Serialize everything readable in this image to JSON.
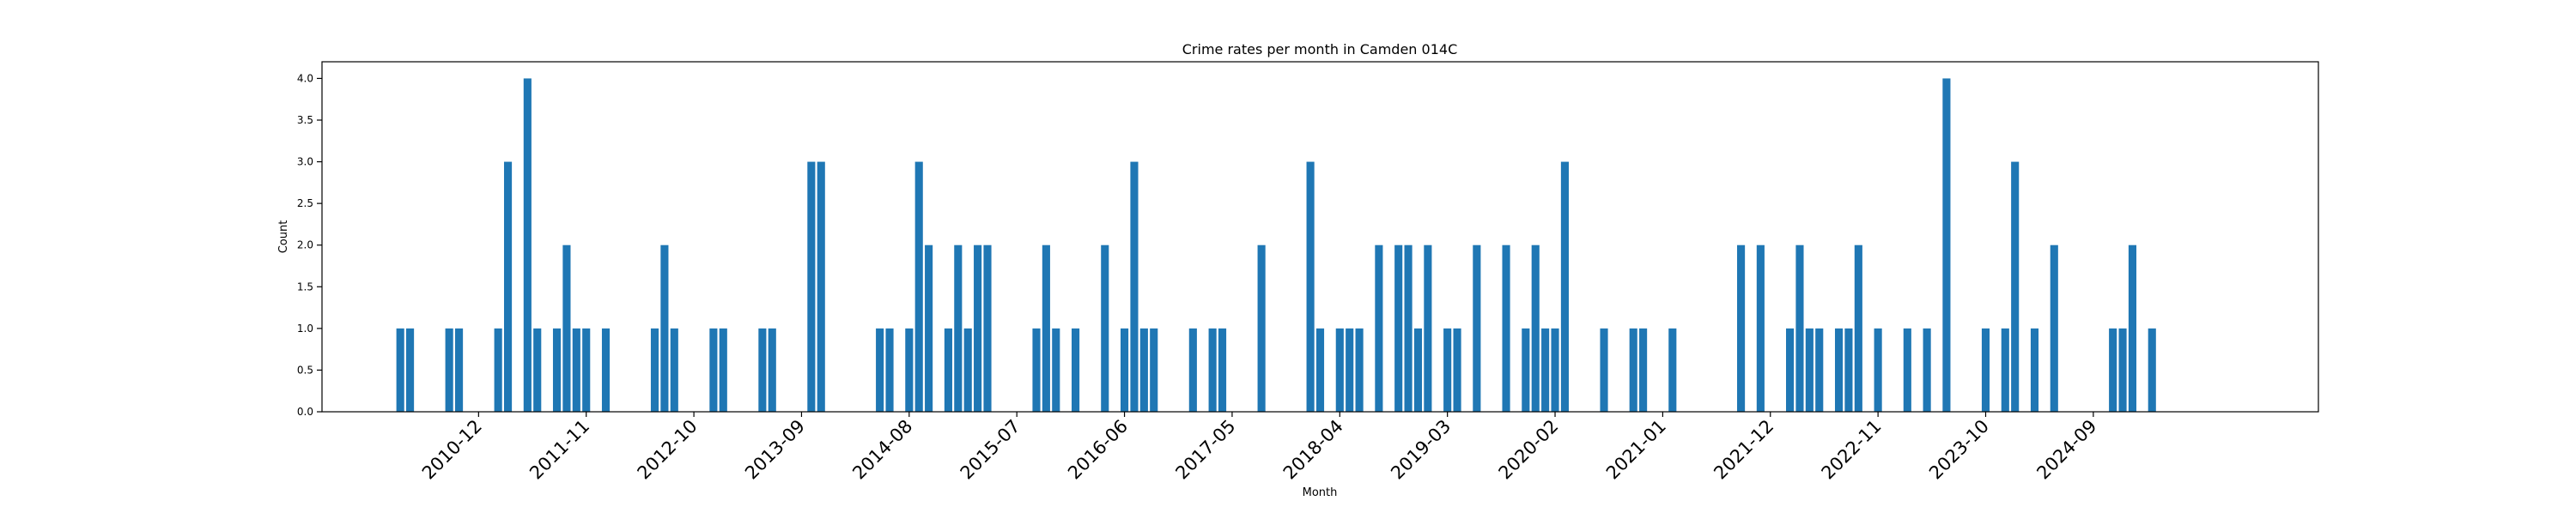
{
  "chart_data": {
    "type": "bar",
    "title": "Crime rates per month in Camden 014C",
    "xlabel": "Month",
    "ylabel": "Count",
    "ylim": [
      0,
      4.2
    ],
    "xlim": [
      "2009-08",
      "2026-08"
    ],
    "yticks": [
      "0.0",
      "0.5",
      "1.0",
      "1.5",
      "2.0",
      "2.5",
      "3.0",
      "3.5",
      "4.0"
    ],
    "xticks": [
      "2010-12",
      "2011-11",
      "2012-10",
      "2013-09",
      "2014-08",
      "2015-07",
      "2016-06",
      "2017-05",
      "2018-04",
      "2019-03",
      "2020-02",
      "2021-01",
      "2021-12",
      "2022-11",
      "2023-10",
      "2024-09"
    ],
    "grid": false,
    "legend": "none",
    "bar_color": "#1f77b4",
    "categories": [
      "2010-04",
      "2010-05",
      "2010-09",
      "2010-10",
      "2011-02",
      "2011-03",
      "2011-05",
      "2011-06",
      "2011-08",
      "2011-09",
      "2011-10",
      "2011-11",
      "2012-01",
      "2012-06",
      "2012-07",
      "2012-08",
      "2012-12",
      "2013-01",
      "2013-05",
      "2013-06",
      "2013-10",
      "2013-11",
      "2014-05",
      "2014-06",
      "2014-08",
      "2014-09",
      "2014-10",
      "2014-12",
      "2015-01",
      "2015-02",
      "2015-03",
      "2015-04",
      "2015-09",
      "2015-10",
      "2015-11",
      "2016-01",
      "2016-04",
      "2016-06",
      "2016-07",
      "2016-08",
      "2016-09",
      "2017-01",
      "2017-03",
      "2017-04",
      "2017-08",
      "2018-01",
      "2018-02",
      "2018-04",
      "2018-05",
      "2018-06",
      "2018-08",
      "2018-10",
      "2018-11",
      "2018-12",
      "2019-01",
      "2019-03",
      "2019-04",
      "2019-06",
      "2019-09",
      "2019-11",
      "2019-12",
      "2020-01",
      "2020-02",
      "2020-03",
      "2020-07",
      "2020-10",
      "2020-11",
      "2021-02",
      "2021-09",
      "2021-11",
      "2022-02",
      "2022-03",
      "2022-04",
      "2022-05",
      "2022-07",
      "2022-08",
      "2022-09",
      "2022-11",
      "2023-02",
      "2023-04",
      "2023-06",
      "2023-10",
      "2023-12",
      "2024-01",
      "2024-03",
      "2024-05",
      "2024-11",
      "2024-12",
      "2025-01",
      "2025-03"
    ],
    "values": [
      1,
      1,
      1,
      1,
      1,
      3,
      4,
      1,
      1,
      2,
      1,
      1,
      1,
      1,
      2,
      1,
      1,
      1,
      1,
      1,
      3,
      3,
      1,
      1,
      1,
      3,
      2,
      1,
      2,
      1,
      2,
      2,
      1,
      2,
      1,
      1,
      2,
      1,
      3,
      1,
      1,
      1,
      1,
      1,
      2,
      3,
      1,
      1,
      1,
      1,
      2,
      2,
      2,
      1,
      2,
      1,
      1,
      2,
      2,
      1,
      2,
      1,
      1,
      3,
      1,
      1,
      1,
      1,
      2,
      2,
      1,
      2,
      1,
      1,
      1,
      1,
      2,
      1,
      1,
      1,
      4,
      1,
      1,
      3,
      1,
      2,
      1,
      1,
      2,
      1
    ]
  }
}
